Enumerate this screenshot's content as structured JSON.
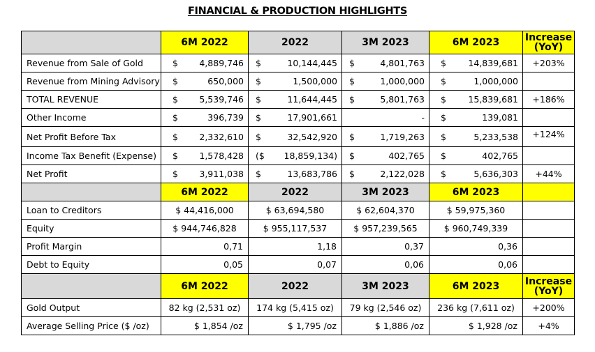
{
  "title": "FINANCIAL & PRODUCTION HIGHLIGHTS",
  "colors": {
    "header_gray": "#d9d9d9",
    "highlight_yellow": "#ffff00",
    "border": "#000000"
  },
  "headers": {
    "c1": "6M 2022",
    "c2": "2022",
    "c3": "3M 2023",
    "c4": "6M 2023",
    "inc": "Increase (YoY)"
  },
  "financial_rows": [
    {
      "label": "Revenue from Sale of Gold",
      "c1": [
        "$",
        "4,889,746"
      ],
      "c2": [
        "$",
        "10,144,445"
      ],
      "c3": [
        "$",
        "4,801,763"
      ],
      "c4": [
        "$",
        "14,839,681"
      ],
      "inc": "+203%"
    },
    {
      "label": "Revenue from Mining Advisory",
      "c1": [
        "$",
        "650,000"
      ],
      "c2": [
        "$",
        "1,500,000"
      ],
      "c3": [
        "$",
        "1,000,000"
      ],
      "c4": [
        "$",
        "1,000,000"
      ],
      "inc": ""
    },
    {
      "label": "TOTAL REVENUE",
      "c1": [
        "$",
        "5,539,746"
      ],
      "c2": [
        "$",
        "11,644,445"
      ],
      "c3": [
        "$",
        "5,801,763"
      ],
      "c4": [
        "$",
        "15,839,681"
      ],
      "inc": "+186%"
    },
    {
      "label": "Other Income",
      "c1": [
        "$",
        "396,739"
      ],
      "c2": [
        "$",
        "17,901,661"
      ],
      "c3": [
        "",
        "-"
      ],
      "c4": [
        "$",
        "139,081"
      ],
      "inc": ""
    },
    {
      "label": "Net Profit Before Tax",
      "c1": [
        "$",
        "2,332,610"
      ],
      "c2": [
        "$",
        "32,542,920"
      ],
      "c3": [
        "$",
        "1,719,263"
      ],
      "c4": [
        "$",
        "5,233,538"
      ],
      "inc": "+124%"
    },
    {
      "label": "Income Tax Benefit (Expense)",
      "c1": [
        "$",
        "1,578,428"
      ],
      "c2": [
        "($",
        "18,859,134)"
      ],
      "c3": [
        "$",
        "402,765"
      ],
      "c4": [
        "$",
        "402,765"
      ],
      "inc": ""
    },
    {
      "label": "Net Profit",
      "c1": [
        "$",
        "3,911,038"
      ],
      "c2": [
        "$",
        "13,683,786"
      ],
      "c3": [
        "$",
        "2,122,028"
      ],
      "c4": [
        "$",
        "5,636,303"
      ],
      "inc": "+44%"
    }
  ],
  "balance_rows": [
    {
      "label": "Loan to Creditors",
      "c1": "$ 44,416,000",
      "c2": "$ 63,694,580",
      "c3": "$ 62,604,370",
      "c4": "$ 59,975,360"
    },
    {
      "label": "Equity",
      "c1": "$ 944,746,828",
      "c2": "$ 955,117,537",
      "c3": "$ 957,239,565",
      "c4": "$ 960,749,339"
    },
    {
      "label": "Profit Margin",
      "c1": "0,71",
      "c2": "1,18",
      "c3": "0,37",
      "c4": "0,36"
    },
    {
      "label": "Debt to Equity",
      "c1": "0,05",
      "c2": "0,07",
      "c3": "0,06",
      "c4": "0,06"
    }
  ],
  "production_rows": [
    {
      "label": "Gold Output",
      "c1": "82 kg (2,531 oz)",
      "c2": "174 kg (5,415 oz)",
      "c3": "79 kg (2,546 oz)",
      "c4": "236 kg (7,611 oz)",
      "inc": "+200%"
    },
    {
      "label": "Average Selling Price ($ /oz)",
      "c1": "$ 1,854 /oz",
      "c2": "$ 1,795 /oz",
      "c3": "$ 1,886 /oz",
      "c4": "$ 1,928 /oz",
      "inc": "+4%"
    }
  ]
}
